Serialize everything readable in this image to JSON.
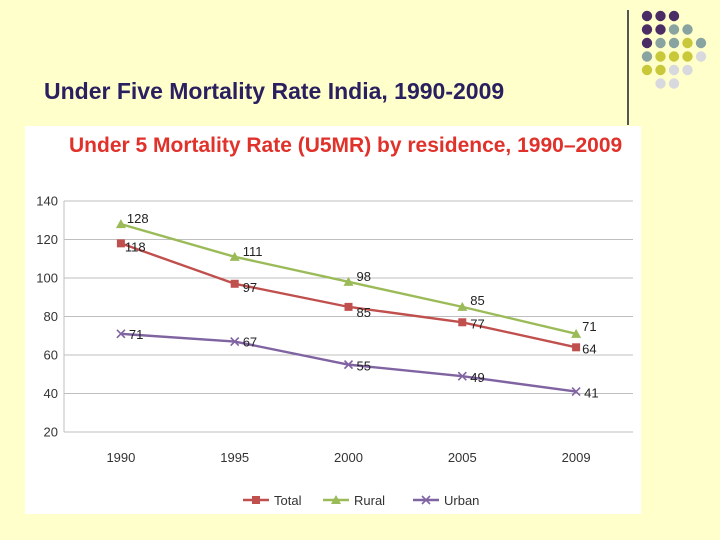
{
  "slide": {
    "title": "Under Five Mortality Rate India, 1990-2009"
  },
  "colors": {
    "background": "#ffffcc",
    "title_text": "#2a2060",
    "chart_title": "#e0322b",
    "dot_purple": "#4a2d64",
    "dot_teal": "#88a3a0",
    "dot_olive": "#c8c83a",
    "dot_grey": "#d8d8df"
  },
  "decorative_dots": [
    [
      "dot_purple",
      "dot_purple",
      "dot_purple",
      null,
      null
    ],
    [
      "dot_purple",
      "dot_purple",
      "dot_teal",
      "dot_teal",
      null
    ],
    [
      "dot_purple",
      "dot_teal",
      "dot_teal",
      "dot_olive",
      "dot_teal"
    ],
    [
      "dot_teal",
      "dot_olive",
      "dot_olive",
      "dot_olive",
      "dot_grey"
    ],
    [
      "dot_olive",
      "dot_olive",
      "dot_grey",
      "dot_grey",
      null
    ],
    [
      null,
      "dot_grey",
      "dot_grey",
      null,
      null
    ]
  ],
  "chart_data": {
    "type": "line",
    "title": "Under 5 Mortality Rate (U5MR) by residence, 1990–2009",
    "categories": [
      "1990",
      "1995",
      "2000",
      "2005",
      "2009"
    ],
    "ylim": [
      20,
      140
    ],
    "yticks": [
      20,
      40,
      60,
      80,
      100,
      120,
      140
    ],
    "grid": true,
    "legend": "bottom",
    "series": [
      {
        "name": "Total",
        "values": [
          118,
          97,
          85,
          77,
          64
        ],
        "color": "#c0504d",
        "marker": "square"
      },
      {
        "name": "Rural",
        "values": [
          128,
          111,
          98,
          85,
          71
        ],
        "color": "#9bbb59",
        "marker": "triangle"
      },
      {
        "name": "Urban",
        "values": [
          71,
          67,
          55,
          49,
          41
        ],
        "color": "#8064a2",
        "marker": "x"
      }
    ]
  }
}
